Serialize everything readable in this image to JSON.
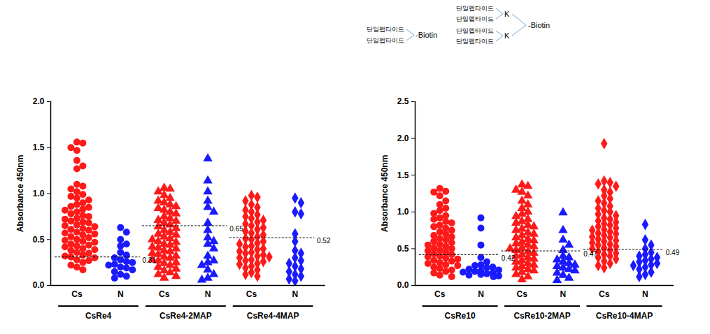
{
  "diagram": {
    "two_branch": {
      "arms": [
        "단일펩타이드",
        "단일펩타이드"
      ],
      "end": "-Biotin"
    },
    "four_branch": {
      "arms": [
        "단일펩타이드",
        "단일펩타이드",
        "단일펩타이드",
        "단일펩타이드"
      ],
      "nodes": [
        "K",
        "K"
      ],
      "end": "-Biotin"
    }
  },
  "chart_data": [
    {
      "type": "scatter",
      "y_label": "Absorbance 450nm",
      "ylim": [
        0,
        2
      ],
      "yticks": [
        {
          "value": 0,
          "label": "0.0"
        },
        {
          "value": 0.5,
          "label": "0.5"
        },
        {
          "value": 1,
          "label": "1.0"
        },
        {
          "value": 1.5,
          "label": "1.5"
        },
        {
          "value": 2,
          "label": "2.0"
        }
      ],
      "categories": [
        "Cs",
        "N",
        "Cs",
        "N",
        "Cs",
        "N"
      ],
      "groups": [
        {
          "name": "CsRe4",
          "marker": "circle",
          "cutoff": 0.31,
          "series": [
            {
              "color": "#ff1a1a",
              "values": [
                1.56,
                1.55,
                1.5,
                1.47,
                1.36,
                1.3,
                1.27,
                1.1,
                1.08,
                1.05,
                1.02,
                0.99,
                0.97,
                0.95,
                0.93,
                0.9,
                0.88,
                0.86,
                0.85,
                0.83,
                0.82,
                0.8,
                0.78,
                0.76,
                0.75,
                0.73,
                0.72,
                0.7,
                0.69,
                0.68,
                0.66,
                0.65,
                0.64,
                0.62,
                0.61,
                0.6,
                0.58,
                0.57,
                0.56,
                0.55,
                0.53,
                0.52,
                0.5,
                0.49,
                0.48,
                0.47,
                0.45,
                0.44,
                0.43,
                0.42,
                0.4,
                0.39,
                0.38,
                0.36,
                0.35,
                0.33,
                0.32,
                0.31,
                0.3,
                0.28,
                0.27,
                0.25,
                0.22,
                0.2,
                0.17
              ]
            },
            {
              "color": "#1a1aff",
              "values": [
                0.63,
                0.58,
                0.5,
                0.45,
                0.43,
                0.36,
                0.33,
                0.3,
                0.28,
                0.26,
                0.25,
                0.23,
                0.22,
                0.2,
                0.19,
                0.17,
                0.15,
                0.12,
                0.1,
                0.08
              ]
            }
          ]
        },
        {
          "name": "CsRe4-2MAP",
          "marker": "triangle",
          "cutoff": 0.65,
          "series": [
            {
              "color": "#ff1a1a",
              "values": [
                1.06,
                1.05,
                1.02,
                0.98,
                0.95,
                0.92,
                0.9,
                0.88,
                0.86,
                0.84,
                0.82,
                0.8,
                0.78,
                0.75,
                0.73,
                0.71,
                0.7,
                0.68,
                0.66,
                0.64,
                0.62,
                0.6,
                0.58,
                0.56,
                0.55,
                0.53,
                0.51,
                0.5,
                0.48,
                0.47,
                0.45,
                0.44,
                0.42,
                0.41,
                0.4,
                0.38,
                0.37,
                0.35,
                0.34,
                0.32,
                0.31,
                0.3,
                0.28,
                0.27,
                0.25,
                0.24,
                0.22,
                0.2,
                0.18,
                0.16,
                0.14,
                0.12,
                0.1,
                0.08
              ]
            },
            {
              "color": "#1a1aff",
              "values": [
                1.38,
                1.14,
                1.02,
                0.92,
                0.85,
                0.8,
                0.68,
                0.6,
                0.52,
                0.48,
                0.45,
                0.4,
                0.32,
                0.27,
                0.25,
                0.22,
                0.17,
                0.12,
                0.08,
                0.06
              ]
            }
          ]
        },
        {
          "name": "CsRe4-4MAP",
          "marker": "diamond",
          "cutoff": 0.52,
          "series": [
            {
              "color": "#ff1a1a",
              "values": [
                0.98,
                0.96,
                0.92,
                0.88,
                0.85,
                0.82,
                0.8,
                0.77,
                0.75,
                0.73,
                0.71,
                0.69,
                0.67,
                0.65,
                0.63,
                0.61,
                0.59,
                0.57,
                0.55,
                0.53,
                0.51,
                0.5,
                0.48,
                0.46,
                0.45,
                0.43,
                0.42,
                0.4,
                0.39,
                0.37,
                0.36,
                0.35,
                0.33,
                0.32,
                0.31,
                0.3,
                0.28,
                0.27,
                0.26,
                0.24,
                0.23,
                0.21,
                0.19,
                0.17,
                0.14,
                0.12,
                0.1
              ]
            },
            {
              "color": "#1a1aff",
              "values": [
                0.95,
                0.9,
                0.8,
                0.78,
                0.56,
                0.48,
                0.38,
                0.35,
                0.3,
                0.27,
                0.24,
                0.21,
                0.18,
                0.15,
                0.12,
                0.1,
                0.07,
                0.05
              ]
            }
          ]
        }
      ]
    },
    {
      "type": "scatter",
      "y_label": "Absorbance 450nm",
      "ylim": [
        0,
        2.5
      ],
      "yticks": [
        {
          "value": 0,
          "label": "0.0"
        },
        {
          "value": 0.5,
          "label": "0.5"
        },
        {
          "value": 1,
          "label": "1.0"
        },
        {
          "value": 1.5,
          "label": "1.5"
        },
        {
          "value": 2,
          "label": "2.0"
        },
        {
          "value": 2.5,
          "label": "2.5"
        }
      ],
      "categories": [
        "Cs",
        "N",
        "Cs",
        "N",
        "Cs",
        "N"
      ],
      "groups": [
        {
          "name": "CsRe10",
          "marker": "circle",
          "cutoff": 0.42,
          "series": [
            {
              "color": "#ff1a1a",
              "values": [
                1.32,
                1.28,
                1.27,
                1.22,
                1.15,
                1.1,
                1.05,
                1.02,
                0.98,
                0.95,
                0.92,
                0.9,
                0.87,
                0.85,
                0.82,
                0.8,
                0.78,
                0.75,
                0.73,
                0.7,
                0.68,
                0.66,
                0.64,
                0.62,
                0.6,
                0.58,
                0.56,
                0.55,
                0.53,
                0.51,
                0.5,
                0.48,
                0.47,
                0.45,
                0.43,
                0.42,
                0.4,
                0.39,
                0.37,
                0.36,
                0.34,
                0.33,
                0.31,
                0.3,
                0.28,
                0.27,
                0.25,
                0.23,
                0.21,
                0.19,
                0.17,
                0.14,
                0.12
              ]
            },
            {
              "color": "#1a1aff",
              "values": [
                0.92,
                0.78,
                0.55,
                0.38,
                0.32,
                0.28,
                0.27,
                0.25,
                0.24,
                0.22,
                0.21,
                0.2,
                0.19,
                0.18,
                0.17,
                0.16,
                0.15,
                0.14,
                0.13,
                0.12
              ]
            }
          ]
        },
        {
          "name": "CsRe10-2MAP",
          "marker": "triangle",
          "cutoff": 0.47,
          "series": [
            {
              "color": "#ff1a1a",
              "values": [
                1.37,
                1.35,
                1.3,
                1.27,
                1.22,
                1.15,
                1.1,
                1.05,
                1.0,
                0.97,
                0.94,
                0.9,
                0.87,
                0.85,
                0.82,
                0.8,
                0.77,
                0.75,
                0.72,
                0.7,
                0.68,
                0.65,
                0.63,
                0.61,
                0.59,
                0.57,
                0.55,
                0.53,
                0.51,
                0.5,
                0.48,
                0.46,
                0.44,
                0.42,
                0.4,
                0.38,
                0.36,
                0.34,
                0.32,
                0.3,
                0.28,
                0.26,
                0.24,
                0.22,
                0.2,
                0.18,
                0.15,
                0.12,
                0.08
              ]
            },
            {
              "color": "#1a1aff",
              "values": [
                0.99,
                0.75,
                0.62,
                0.55,
                0.48,
                0.4,
                0.38,
                0.35,
                0.32,
                0.3,
                0.28,
                0.26,
                0.24,
                0.22,
                0.2,
                0.17,
                0.14,
                0.1,
                0.07
              ]
            }
          ]
        },
        {
          "name": "CsRe10-4MAP",
          "marker": "diamond",
          "cutoff": 0.49,
          "series": [
            {
              "color": "#ff1a1a",
              "values": [
                1.93,
                1.42,
                1.4,
                1.38,
                1.35,
                1.3,
                1.27,
                1.22,
                1.18,
                1.15,
                1.12,
                1.08,
                1.05,
                1.02,
                1.0,
                0.97,
                0.95,
                0.92,
                0.9,
                0.88,
                0.86,
                0.84,
                0.82,
                0.8,
                0.78,
                0.76,
                0.75,
                0.73,
                0.71,
                0.7,
                0.68,
                0.66,
                0.65,
                0.63,
                0.61,
                0.6,
                0.58,
                0.56,
                0.55,
                0.53,
                0.51,
                0.5,
                0.48,
                0.46,
                0.44,
                0.42,
                0.4,
                0.38,
                0.36,
                0.33,
                0.3,
                0.27,
                0.24
              ]
            },
            {
              "color": "#1a1aff",
              "values": [
                0.83,
                0.62,
                0.55,
                0.5,
                0.45,
                0.42,
                0.4,
                0.38,
                0.36,
                0.34,
                0.32,
                0.3,
                0.28,
                0.27,
                0.25,
                0.22,
                0.18,
                0.15,
                0.12
              ]
            }
          ]
        }
      ]
    }
  ]
}
